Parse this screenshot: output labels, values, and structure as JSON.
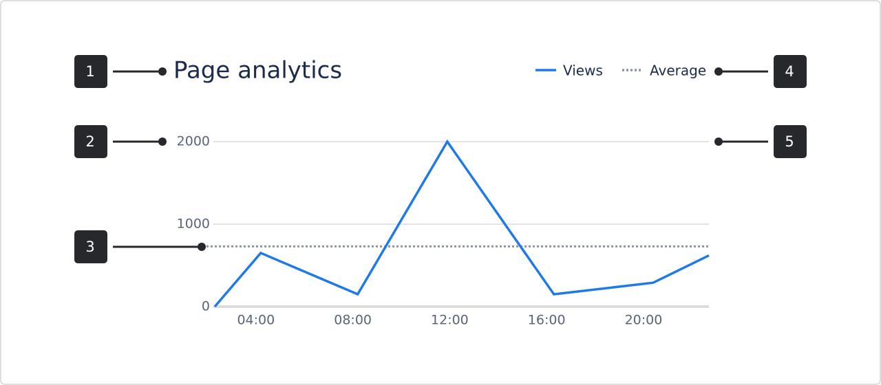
{
  "chart_data": {
    "type": "line",
    "title": "Page analytics",
    "x": [
      2.3,
      4.2,
      8.2,
      11.9,
      16.3,
      20.4,
      22.7
    ],
    "series": [
      {
        "name": "Views",
        "color": "#1f7ae8",
        "values": [
          0,
          650,
          150,
          2000,
          150,
          290,
          620
        ]
      }
    ],
    "reference_lines": [
      {
        "name": "Average",
        "color": "#8a94a6",
        "value": 730
      }
    ],
    "xlim": [
      2.3,
      22.7
    ],
    "xticks": [
      {
        "value": 4,
        "label": "04:00"
      },
      {
        "value": 8,
        "label": "08:00"
      },
      {
        "value": 12,
        "label": "12:00"
      },
      {
        "value": 16,
        "label": "16:00"
      },
      {
        "value": 20,
        "label": "20:00"
      }
    ],
    "ylim": [
      0,
      2000
    ],
    "yticks": [
      0,
      1000,
      2000
    ],
    "grid": true
  },
  "callouts": [
    "1",
    "2",
    "3",
    "4",
    "5"
  ]
}
